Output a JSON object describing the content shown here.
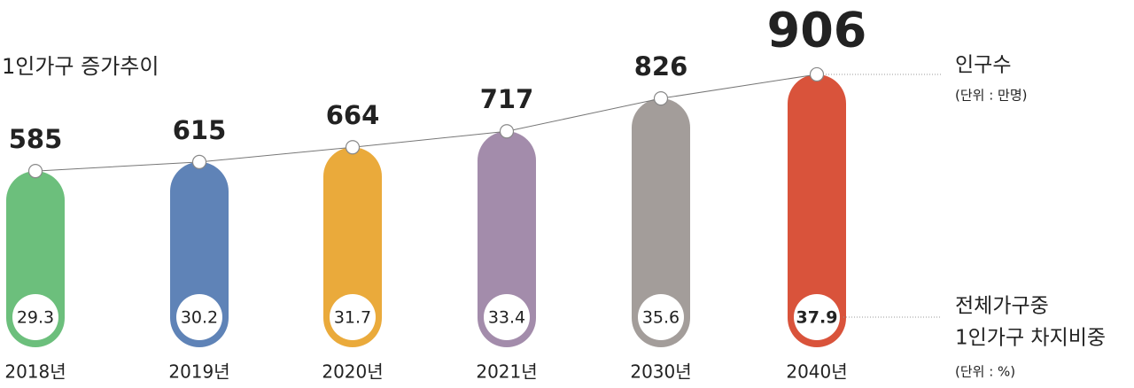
{
  "chart_data": {
    "type": "bar",
    "title": "1인가구 증가추이",
    "categories": [
      "2018년",
      "2019년",
      "2020년",
      "2021년",
      "2030년",
      "2040년"
    ],
    "colors": [
      "#6cbf7c",
      "#5f83b7",
      "#eaaa3b",
      "#a38cab",
      "#a39d9a",
      "#d9533b"
    ],
    "series": [
      {
        "name": "인구수",
        "unit": "(단위 : 만명)",
        "values": [
          585,
          615,
          664,
          717,
          826,
          906
        ]
      },
      {
        "name": [
          "전체가구중",
          "1인가구 차지비중"
        ],
        "unit": "(단위 : %)",
        "values": [
          29.3,
          30.2,
          31.7,
          33.4,
          35.6,
          37.9
        ]
      }
    ]
  }
}
